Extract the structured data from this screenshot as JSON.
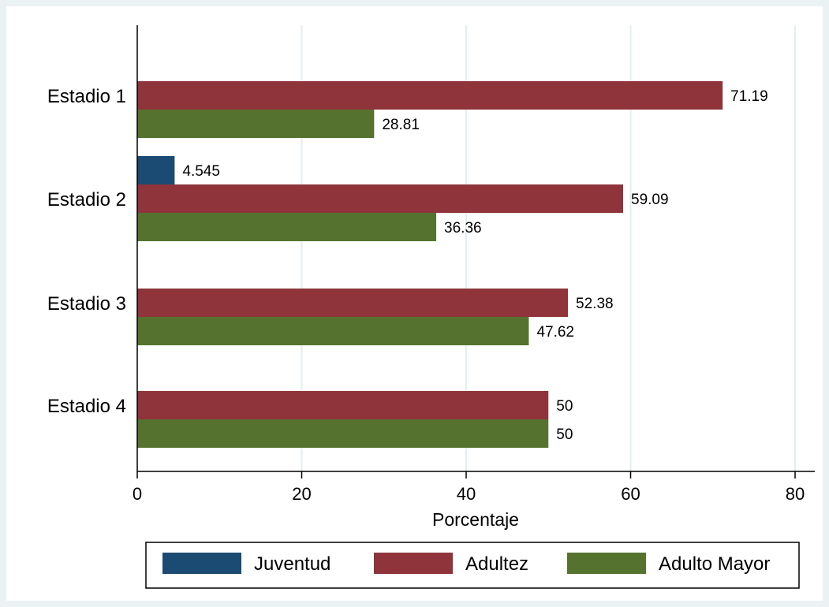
{
  "colors": {
    "Juventud": "#1b4a72",
    "Adultez": "#8f343b",
    "Adulto Mayor": "#55732f"
  },
  "chart_data": {
    "type": "bar",
    "orientation": "horizontal",
    "categories": [
      "Estadio 1",
      "Estadio 2",
      "Estadio 3",
      "Estadio 4"
    ],
    "series": [
      {
        "name": "Juventud",
        "values": [
          null,
          4.545,
          null,
          null
        ]
      },
      {
        "name": "Adultez",
        "values": [
          71.19,
          59.09,
          52.38,
          50
        ]
      },
      {
        "name": "Adulto Mayor",
        "values": [
          28.81,
          36.36,
          47.62,
          50
        ]
      }
    ],
    "value_labels": {
      "Juventud": [
        null,
        "4.545",
        null,
        null
      ],
      "Adultez": [
        "71.19",
        "59.09",
        "52.38",
        "50"
      ],
      "Adulto Mayor": [
        "28.81",
        "36.36",
        "47.62",
        "50"
      ]
    },
    "xlabel": "Porcentaje",
    "xlim": [
      0,
      80
    ],
    "xticks": [
      0,
      20,
      40,
      60,
      80
    ],
    "grid": true,
    "legend": {
      "placement": "bottom",
      "entries": [
        "Juventud",
        "Adultez",
        "Adulto Mayor"
      ]
    }
  }
}
